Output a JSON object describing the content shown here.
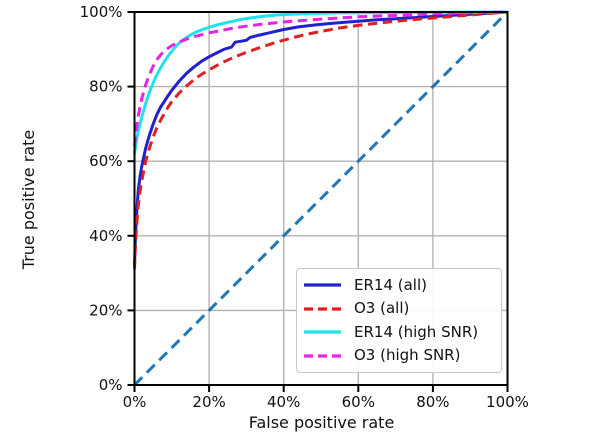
{
  "chart_data": {
    "type": "line",
    "title": "",
    "xlabel": "False positive rate",
    "ylabel": "True positive rate",
    "xlim": [
      0,
      100
    ],
    "ylim": [
      0,
      100
    ],
    "grid": true,
    "legend_position": "lower right",
    "x_tick_values": [
      0,
      20,
      40,
      60,
      80,
      100
    ],
    "x_tick_labels": [
      "0%",
      "20%",
      "40%",
      "60%",
      "80%",
      "100%"
    ],
    "y_tick_values": [
      0,
      20,
      40,
      60,
      80,
      100
    ],
    "y_tick_labels": [
      "0%",
      "20%",
      "40%",
      "60%",
      "80%",
      "100%"
    ],
    "axis_color": "#000000",
    "grid_color": "#b3b3b3",
    "series": [
      {
        "name": "ER14 (all)",
        "color": "#2121cd",
        "style": "solid",
        "in_legend": true,
        "points": [
          [
            0,
            32
          ],
          [
            0.2,
            38
          ],
          [
            0.5,
            45
          ],
          [
            1,
            52
          ],
          [
            1.5,
            56
          ],
          [
            2,
            59
          ],
          [
            3,
            63.5
          ],
          [
            4,
            67
          ],
          [
            5,
            70
          ],
          [
            6,
            72.5
          ],
          [
            7,
            74.5
          ],
          [
            8,
            76
          ],
          [
            9,
            77.6
          ],
          [
            10,
            79
          ],
          [
            12,
            81.5
          ],
          [
            14,
            83.6
          ],
          [
            16,
            85.3
          ],
          [
            18,
            86.8
          ],
          [
            20,
            88
          ],
          [
            22,
            89
          ],
          [
            24,
            90
          ],
          [
            26,
            90.6
          ],
          [
            27,
            91.9
          ],
          [
            30,
            92.4
          ],
          [
            31,
            93.2
          ],
          [
            33,
            93.7
          ],
          [
            36,
            94.4
          ],
          [
            40,
            95.3
          ],
          [
            44,
            96
          ],
          [
            48,
            96.5
          ],
          [
            52,
            96.9
          ],
          [
            56,
            97.2
          ],
          [
            60,
            97.5
          ],
          [
            65,
            97.9
          ],
          [
            70,
            98.2
          ],
          [
            75,
            98.5
          ],
          [
            80,
            98.8
          ],
          [
            85,
            99.1
          ],
          [
            90,
            99.4
          ],
          [
            95,
            99.7
          ],
          [
            100,
            100
          ]
        ]
      },
      {
        "name": "O3 (all)",
        "color": "#e02020",
        "style": "dashed",
        "in_legend": true,
        "points": [
          [
            0,
            31
          ],
          [
            0.2,
            36
          ],
          [
            0.5,
            42
          ],
          [
            1,
            48
          ],
          [
            1.5,
            52
          ],
          [
            2,
            55
          ],
          [
            3,
            60
          ],
          [
            4,
            63.5
          ],
          [
            5,
            66.5
          ],
          [
            6,
            69
          ],
          [
            7,
            71
          ],
          [
            8,
            72.8
          ],
          [
            9,
            74.5
          ],
          [
            10,
            76
          ],
          [
            12,
            78.3
          ],
          [
            14,
            80.2
          ],
          [
            16,
            81.9
          ],
          [
            18,
            83.3
          ],
          [
            20,
            84.5
          ],
          [
            23,
            86.2
          ],
          [
            26,
            87.6
          ],
          [
            30,
            89.2
          ],
          [
            34,
            90.6
          ],
          [
            38,
            91.9
          ],
          [
            42,
            93
          ],
          [
            46,
            94
          ],
          [
            50,
            94.8
          ],
          [
            55,
            95.7
          ],
          [
            60,
            96.4
          ],
          [
            65,
            97
          ],
          [
            70,
            97.5
          ],
          [
            75,
            98
          ],
          [
            80,
            98.4
          ],
          [
            85,
            98.8
          ],
          [
            90,
            99.2
          ],
          [
            95,
            99.6
          ],
          [
            100,
            100
          ]
        ]
      },
      {
        "name": "ER14 (high SNR)",
        "color": "#22e0ee",
        "style": "solid",
        "in_legend": true,
        "points": [
          [
            0,
            62
          ],
          [
            0.3,
            64
          ],
          [
            0.7,
            66.5
          ],
          [
            1,
            68
          ],
          [
            1.5,
            70
          ],
          [
            2,
            72
          ],
          [
            3,
            75.5
          ],
          [
            4,
            78.5
          ],
          [
            5,
            81
          ],
          [
            6,
            83.2
          ],
          [
            7,
            85
          ],
          [
            8,
            86.7
          ],
          [
            9,
            88.2
          ],
          [
            10,
            89.5
          ],
          [
            11,
            90.7
          ],
          [
            12,
            91.7
          ],
          [
            13,
            92.5
          ],
          [
            14,
            93.2
          ],
          [
            15,
            93.8
          ],
          [
            16,
            94.4
          ],
          [
            18,
            95.2
          ],
          [
            20,
            95.9
          ],
          [
            22,
            96.5
          ],
          [
            25,
            97.2
          ],
          [
            28,
            97.9
          ],
          [
            31,
            98.4
          ],
          [
            34,
            98.8
          ],
          [
            38,
            99.2
          ],
          [
            42,
            99.4
          ],
          [
            48,
            99.6
          ],
          [
            55,
            99.75
          ],
          [
            65,
            99.85
          ],
          [
            80,
            99.95
          ],
          [
            100,
            100
          ]
        ]
      },
      {
        "name": "O3 (high SNR)",
        "color": "#e426e4",
        "style": "dashed",
        "in_legend": true,
        "points": [
          [
            0,
            64
          ],
          [
            0.3,
            67
          ],
          [
            0.7,
            70
          ],
          [
            1,
            72
          ],
          [
            1.5,
            74.7
          ],
          [
            2,
            77
          ],
          [
            3,
            80.5
          ],
          [
            4,
            83.2
          ],
          [
            5,
            85.5
          ],
          [
            6,
            87.2
          ],
          [
            7,
            88.5
          ],
          [
            8,
            89.5
          ],
          [
            9,
            90.3
          ],
          [
            10,
            91
          ],
          [
            12,
            92
          ],
          [
            14,
            92.7
          ],
          [
            16,
            93.4
          ],
          [
            18,
            93.9
          ],
          [
            20,
            94.4
          ],
          [
            23,
            95
          ],
          [
            26,
            95.6
          ],
          [
            30,
            96.2
          ],
          [
            34,
            96.7
          ],
          [
            38,
            97.1
          ],
          [
            42,
            97.5
          ],
          [
            46,
            97.8
          ],
          [
            50,
            98.1
          ],
          [
            55,
            98.4
          ],
          [
            60,
            98.7
          ],
          [
            65,
            98.9
          ],
          [
            70,
            99.1
          ],
          [
            75,
            99.3
          ],
          [
            80,
            99.5
          ],
          [
            85,
            99.65
          ],
          [
            90,
            99.8
          ],
          [
            95,
            99.9
          ],
          [
            100,
            100
          ]
        ]
      },
      {
        "name": "chance diagonal",
        "color": "#1f77b4",
        "style": "dashed",
        "in_legend": false,
        "points": [
          [
            0,
            0
          ],
          [
            100,
            100
          ]
        ]
      }
    ]
  }
}
